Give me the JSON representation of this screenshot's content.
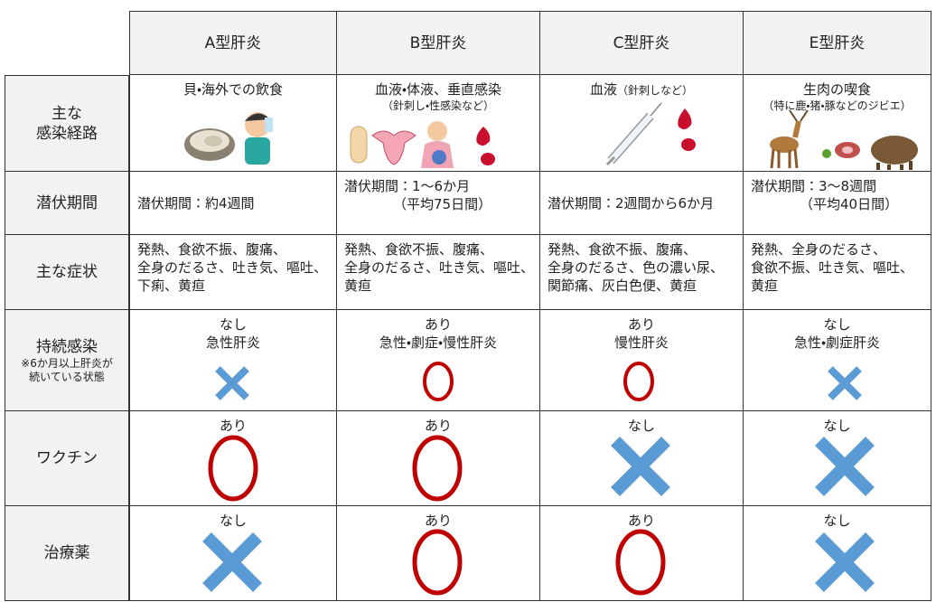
{
  "table": {
    "columns": [
      "A型肝炎",
      "B型肝炎",
      "C型肝炎",
      "E型肝炎"
    ],
    "rows": [
      {
        "label": [
          "主な",
          "感染経路"
        ],
        "cells": [
          [
            "貝・海外での飲食"
          ],
          [
            "血液・体液、垂直感染",
            "（針刺し・性感染など）"
          ],
          [
            "血液",
            "（針刺しなど）"
          ],
          [
            "生肉の喫食",
            "（特に鹿・猪・豚などのジビエ）"
          ]
        ]
      },
      {
        "label": [
          "潜伏期間"
        ],
        "cells": [
          [
            "潜伏期間：約4週間"
          ],
          [
            "潜伏期間：1～6か月",
            "（平均75日間）"
          ],
          [
            "潜伏期間：2週間から6か月"
          ],
          [
            "潜伏期間：3～8週間",
            "（平均40日間）"
          ]
        ]
      },
      {
        "label": [
          "主な症状"
        ],
        "cells": [
          [
            "発熱、食欲不振、腹痛、",
            "全身のだるさ、吐き気、嘔吐、",
            "下痢、黄疸"
          ],
          [
            "発熱、食欲不振、腹痛、",
            "全身のだるさ、吐き気、嘔吐、",
            "黄疸"
          ],
          [
            "発熱、食欲不振、腹痛、",
            "全身のだるさ、色の濃い尿、",
            "関節痛、灰白色便、黄疸"
          ],
          [
            "発熱、全身のだるさ、",
            "食欲不振、吐き気、嘔吐、",
            "黄疸"
          ]
        ]
      },
      {
        "label": [
          "持続感染"
        ],
        "note": [
          "※6か月以上肝炎が",
          "続いている状態"
        ],
        "cells": [
          [
            "なし",
            "急性肝炎"
          ],
          [
            "あり",
            "急性・劇症・慢性肝炎"
          ],
          [
            "あり",
            "慢性肝炎"
          ],
          [
            "なし",
            "急性・劇症肝炎"
          ]
        ]
      },
      {
        "label": [
          "ワクチン"
        ],
        "cells": [
          [
            "あり"
          ],
          [
            "あり"
          ],
          [
            "なし"
          ],
          [
            "なし"
          ]
        ]
      },
      {
        "label": [
          "治療薬"
        ],
        "cells": [
          [
            "なし"
          ],
          [
            "あり"
          ],
          [
            "あり"
          ],
          [
            "なし"
          ]
        ]
      }
    ]
  }
}
